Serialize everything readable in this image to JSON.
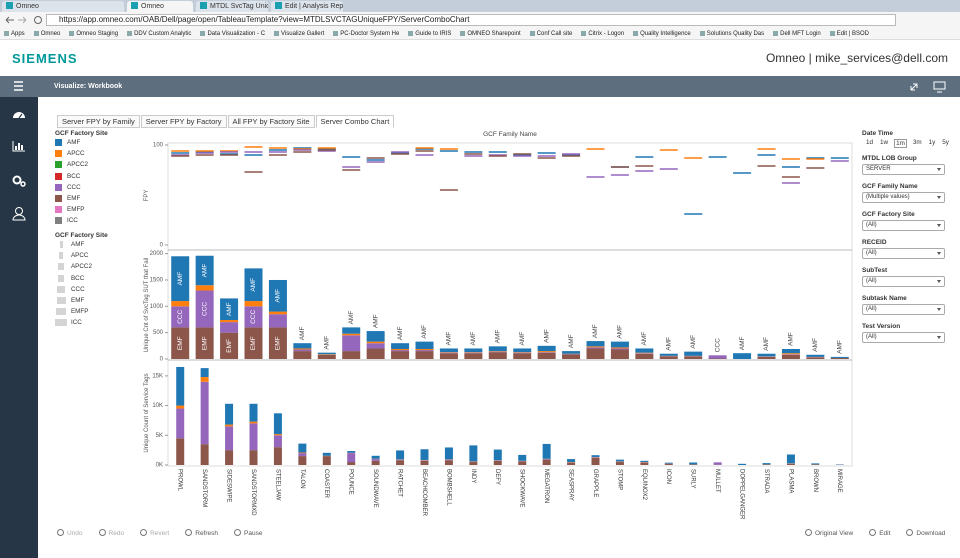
{
  "browser": {
    "tabs": [
      "Omneo",
      "Omneo",
      "MTDL SvcTag Unique FP",
      "Edit | Analysis Repair"
    ],
    "url": "https://app.omneo.com/OAB/Dell/page/open/TableauTemplate?view=MTDLSVCTAGUniqueFPY/ServerComboChart",
    "bookmarks": [
      "Apps",
      "Omneo",
      "Omneo Staging",
      "DDV Custom Analytic",
      "Data Visualization - C",
      "Visualize Gallert",
      "PC-Doctor System He",
      "Guide to IRIS",
      "OMNEO Sharepoint",
      "Conf Call site",
      "Citrix - Logon",
      "Quality Intelligence",
      "Solutions Quality Das",
      "Dell MFT Login",
      "Edit | BSOD"
    ]
  },
  "header": {
    "logo": "SIEMENS",
    "user": "Omneo | mike_services@dell.com"
  },
  "toolbar": {
    "title": "Visualize: Workbook"
  },
  "workbook_tabs": [
    "Server FPY by Family",
    "Server FPY by Factory",
    "All FPY by Factory Site",
    "Server Combo Chart"
  ],
  "legend": {
    "title": "GCF Factory Site",
    "items": [
      {
        "name": "AMF",
        "color": "#1f77b4"
      },
      {
        "name": "APCC",
        "color": "#ff7f0e"
      },
      {
        "name": "APCC2",
        "color": "#2ca02c"
      },
      {
        "name": "BCC",
        "color": "#d62728"
      },
      {
        "name": "CCC",
        "color": "#9467bd"
      },
      {
        "name": "EMF",
        "color": "#8c564b"
      },
      {
        "name": "EMFP",
        "color": "#e377c2"
      },
      {
        "name": "ICC",
        "color": "#7f7f7f"
      }
    ]
  },
  "size_legend": {
    "title": "GCF Factory Site",
    "items": [
      "AMF",
      "APCC",
      "APCC2",
      "BCC",
      "CCC",
      "EMF",
      "EMFP",
      "ICC"
    ]
  },
  "chart_data": [
    {
      "type": "tick",
      "x_title": "GCF Family Name",
      "ylabel": "FPY",
      "ylim": [
        -3,
        102
      ],
      "yticks": [
        0,
        100
      ],
      "series": [
        {
          "color": "#1f77b4",
          "values": [
            92,
            93,
            91,
            90,
            95,
            97,
            96,
            88,
            85,
            92,
            96,
            94,
            93,
            93,
            90,
            92,
            90,
            null,
            78,
            88,
            null,
            31,
            88,
            72,
            90,
            78,
            87,
            87
          ]
        },
        {
          "color": "#ff7f0e",
          "values": [
            94,
            94,
            94,
            98,
            97,
            96,
            97,
            null,
            null,
            null,
            97,
            96,
            null,
            null,
            null,
            null,
            null,
            96,
            null,
            null,
            95,
            87,
            null,
            null,
            96,
            86,
            86,
            null
          ]
        },
        {
          "color": "#9467bd",
          "values": [
            90,
            92,
            93,
            93,
            93,
            95,
            94,
            78,
            83,
            93,
            90,
            null,
            89,
            90,
            89,
            89,
            91,
            68,
            70,
            74,
            76,
            null,
            null,
            null,
            null,
            62,
            null,
            84
          ]
        },
        {
          "color": "#8c564b",
          "values": [
            89,
            90,
            90,
            73,
            90,
            93,
            95,
            75,
            87,
            91,
            94,
            55,
            91,
            89,
            91,
            87,
            89,
            null,
            78,
            79,
            null,
            null,
            null,
            null,
            79,
            68,
            77,
            null
          ]
        }
      ]
    },
    {
      "type": "stacked_bar",
      "ylabel": "Unique Cnt of SvcTag SUT that Fail",
      "ylim": [
        0,
        2050
      ],
      "yticks": [
        0,
        500,
        1000,
        1500,
        2000
      ],
      "series": [
        {
          "name": "EMF",
          "color": "#8c564b",
          "values": [
            600,
            600,
            500,
            600,
            600,
            150,
            80,
            150,
            200,
            150,
            150,
            110,
            110,
            130,
            110,
            120,
            90,
            200,
            180,
            100,
            50,
            50,
            10,
            0,
            40,
            80,
            30,
            20
          ]
        },
        {
          "name": "CCC",
          "color": "#9467bd",
          "values": [
            400,
            700,
            200,
            400,
            250,
            30,
            0,
            300,
            100,
            20,
            20,
            10,
            10,
            10,
            10,
            10,
            5,
            20,
            20,
            10,
            5,
            5,
            60,
            0,
            5,
            10,
            5,
            0
          ]
        },
        {
          "color": "#ff7f0e",
          "values": [
            100,
            100,
            40,
            100,
            50,
            20,
            10,
            30,
            30,
            20,
            20,
            10,
            10,
            10,
            10,
            20,
            5,
            20,
            20,
            10,
            5,
            5,
            0,
            0,
            5,
            20,
            5,
            0
          ]
        },
        {
          "name": "AMF",
          "color": "#1f77b4",
          "values": [
            850,
            560,
            410,
            620,
            600,
            100,
            30,
            120,
            200,
            110,
            140,
            70,
            70,
            90,
            70,
            100,
            50,
            100,
            110,
            80,
            40,
            80,
            0,
            110,
            50,
            80,
            40,
            20
          ]
        }
      ]
    },
    {
      "type": "stacked_bar",
      "ylabel": "Unique Count of Service Tags",
      "ylim": [
        0,
        17500
      ],
      "yticks": [
        {
          "value": 0,
          "label": "0K"
        },
        {
          "value": 5000,
          "label": "5K"
        },
        {
          "value": 10000,
          "label": "10K"
        },
        {
          "value": 15000,
          "label": "15K"
        }
      ],
      "categories": [
        "PROWL",
        "SANDSTORM",
        "SIDESWIPE",
        "SANDSTORMXD",
        "STEELJAW",
        "TALON",
        "COASTER",
        "POUNCE",
        "SOUNDWAVE",
        "RATCHET",
        "BEACHCOMBER",
        "BOMBSHELL",
        "INDY",
        "DEFY",
        "SHOCKWAVE",
        "MEGATRON",
        "SEASPRAY",
        "GRAPPLE",
        "STOMP",
        "EQUINOX2",
        "ICON",
        "SURLY",
        "MULLET",
        "DOPPELGANGER",
        "STRADA",
        "PLASMA",
        "BROWN",
        "MIRAGE"
      ],
      "series": [
        {
          "color": "#8c564b",
          "values": [
            4500,
            3500,
            2500,
            2500,
            3000,
            1500,
            1500,
            500,
            700,
            800,
            700,
            800,
            500,
            700,
            600,
            900,
            400,
            1200,
            500,
            400,
            200,
            100,
            50,
            0,
            100,
            200,
            100,
            50
          ]
        },
        {
          "color": "#9467bd",
          "values": [
            5000,
            10500,
            4000,
            4500,
            2000,
            500,
            0,
            1500,
            300,
            100,
            100,
            100,
            50,
            50,
            50,
            100,
            50,
            100,
            50,
            50,
            20,
            10,
            400,
            0,
            10,
            20,
            10,
            0
          ]
        },
        {
          "color": "#ff7f0e",
          "values": [
            500,
            800,
            300,
            300,
            200,
            100,
            50,
            50,
            50,
            50,
            50,
            50,
            50,
            50,
            50,
            50,
            50,
            50,
            50,
            50,
            20,
            10,
            0,
            0,
            10,
            50,
            10,
            0
          ]
        },
        {
          "color": "#1f77b4",
          "values": [
            6500,
            1500,
            3500,
            3000,
            3500,
            1500,
            500,
            300,
            500,
            1500,
            1800,
            2000,
            2700,
            1800,
            1000,
            2500,
            500,
            300,
            300,
            200,
            150,
            300,
            0,
            200,
            200,
            1500,
            150,
            50
          ]
        }
      ]
    }
  ],
  "filters": [
    {
      "label": "Date Time",
      "options": [
        "1d",
        "1w",
        "1m",
        "3m",
        "1y",
        "5y"
      ]
    },
    {
      "label": "MTDL LOB Group",
      "value": "SERVER"
    },
    {
      "label": "GCF Family Name",
      "value": "(Multiple values)"
    },
    {
      "label": "GCF Factory Site",
      "value": "(All)"
    },
    {
      "label": "RECEID",
      "value": "(All)"
    },
    {
      "label": "SubTest",
      "value": "(All)"
    },
    {
      "label": "Subtask Name",
      "value": "(All)"
    },
    {
      "label": "Test Version",
      "value": "(All)"
    }
  ],
  "actions_left": [
    "Undo",
    "Redo",
    "Revert",
    "Refresh",
    "Pause"
  ],
  "actions_right": [
    "Original View",
    "Edit",
    "Download"
  ]
}
